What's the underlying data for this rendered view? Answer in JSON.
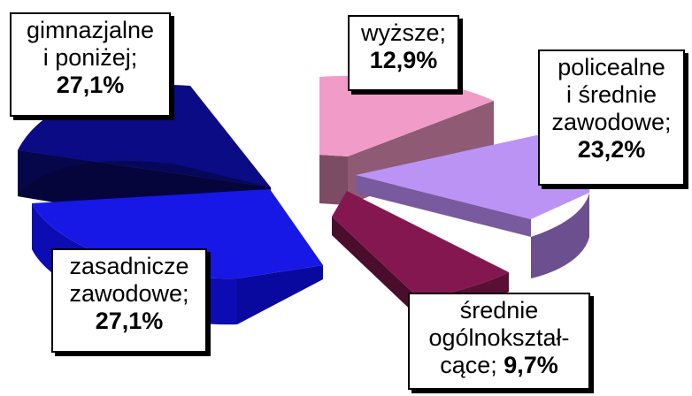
{
  "chart_data": {
    "type": "pie",
    "title": "",
    "slices": [
      {
        "name": "gimnazjalne i poniżej",
        "value": 27.1,
        "value_label": "27,1%",
        "color": "#0b0b86",
        "exploded": true
      },
      {
        "name": "zasadnicze zawodowe",
        "value": 27.1,
        "value_label": "27,1%",
        "color": "#1717e6",
        "exploded": true
      },
      {
        "name": "wyższe",
        "value": 12.9,
        "value_label": "12,9%",
        "color": "#f19bc9",
        "exploded": true
      },
      {
        "name": "policealne i średnie zawodowe",
        "value": 23.2,
        "value_label": "23,2%",
        "color": "#bb93f4",
        "exploded": true
      },
      {
        "name": "średnie ogólnokształcące",
        "value": 9.7,
        "value_label": "9,7%",
        "color": "#84174f",
        "exploded": true
      }
    ],
    "style": "3D exploded pie"
  },
  "labels": {
    "gimn": {
      "line1": "gimnazjalne",
      "line2": "i poniżej;",
      "value": "27,1%"
    },
    "zas": {
      "line1": "zasadnicze",
      "line2": "zawodowe;",
      "value": "27,1%"
    },
    "wyz": {
      "line1": "wyższe;",
      "value": "12,9%"
    },
    "pol": {
      "line1": "policealne",
      "line2": "i średnie",
      "line3": "zawodowe;",
      "value": "23,2%"
    },
    "sre": {
      "line1": "średnie",
      "line2": "ogólnokształ-",
      "line3": "cące;",
      "value": "9,7%"
    }
  }
}
